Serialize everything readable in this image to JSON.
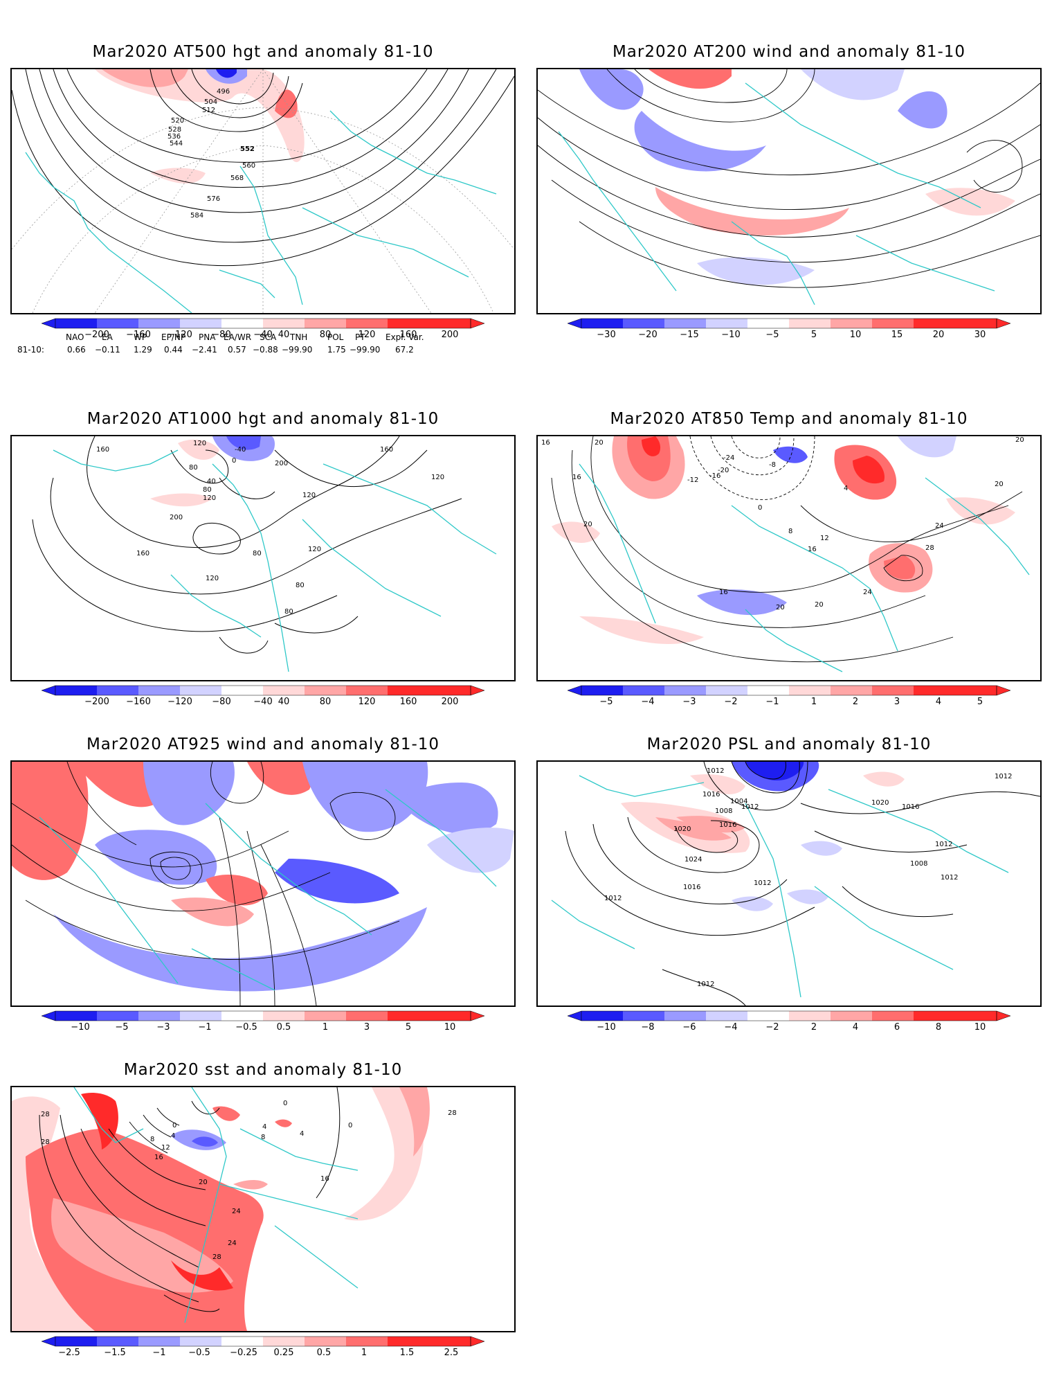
{
  "colors": {
    "blue_dark": "#1e1ef0",
    "blue_mid": "#5a5aff",
    "blue_light": "#9a9aff",
    "blue_pale": "#d2d2ff",
    "red_pale": "#ffd8d8",
    "red_light": "#ffa6a6",
    "red_mid": "#ff6e6e",
    "red_dark": "#ff2a2a",
    "coast": "#2ec8c8",
    "contour": "#000000"
  },
  "panels": [
    {
      "id": "at500",
      "title": "Mar2020 AT500 hgt and anomaly 81-10",
      "colorbar_ticks": [
        "−200",
        "−160",
        "−120",
        "−80",
        "−40",
        "40",
        "80",
        "120",
        "160",
        "200"
      ],
      "contour_labels": [
        "496",
        "504",
        "512",
        "520",
        "528",
        "536",
        "544",
        "552",
        "560",
        "568",
        "576",
        "584"
      ]
    },
    {
      "id": "at200",
      "title": "Mar2020 AT200 wind and anomaly 81-10",
      "colorbar_ticks": [
        "−30",
        "−20",
        "−15",
        "−10",
        "−5",
        "5",
        "10",
        "15",
        "20",
        "30"
      ],
      "contour_labels": []
    },
    {
      "id": "at1000",
      "title": "Mar2020 AT1000 hgt and anomaly 81-10",
      "colorbar_ticks": [
        "−200",
        "−160",
        "−120",
        "−80",
        "−40",
        "40",
        "80",
        "120",
        "160",
        "200"
      ],
      "contour_labels": [
        "160",
        "120",
        "80",
        "40",
        "-40",
        "0",
        "80",
        "120",
        "200",
        "160",
        "200",
        "120",
        "160",
        "120",
        "120",
        "80",
        "80",
        "80",
        "120"
      ]
    },
    {
      "id": "at850",
      "title": "Mar2020 AT850 Temp and anomaly 81-10",
      "colorbar_ticks": [
        "−5",
        "−4",
        "−3",
        "−2",
        "−1",
        "1",
        "2",
        "3",
        "4",
        "5"
      ],
      "contour_labels": [
        "16",
        "20",
        "16",
        "20",
        "-24",
        "-20",
        "-16",
        "-12",
        "-8",
        "0",
        "4",
        "8",
        "12",
        "16",
        "20",
        "24",
        "28",
        "24",
        "20",
        "16",
        "20",
        "20"
      ]
    },
    {
      "id": "at925",
      "title": "Mar2020 AT925 wind and anomaly 81-10",
      "colorbar_ticks": [
        "−10",
        "−5",
        "−3",
        "−1",
        "−0.5",
        "0.5",
        "1",
        "3",
        "5",
        "10"
      ],
      "contour_labels": []
    },
    {
      "id": "psl",
      "title": "Mar2020 PSL and anomaly 81-10",
      "colorbar_ticks": [
        "−10",
        "−8",
        "−6",
        "−4",
        "−2",
        "2",
        "4",
        "6",
        "8",
        "10"
      ],
      "contour_labels": [
        "1012",
        "1016",
        "1004",
        "1008",
        "1012",
        "1016",
        "1020",
        "1024",
        "1016",
        "1012",
        "1020",
        "1016",
        "1012",
        "1012",
        "1008",
        "1012",
        "1012",
        "1012"
      ]
    },
    {
      "id": "sst",
      "title": "Mar2020 sst and anomaly 81-10",
      "colorbar_ticks": [
        "−2.5",
        "−1.5",
        "−1",
        "−0.5",
        "−0.25",
        "0.25",
        "0.5",
        "1",
        "1.5",
        "2.5"
      ],
      "contour_labels": [
        "28",
        "28",
        "0",
        "4",
        "8",
        "12",
        "16",
        "20",
        "24",
        "28",
        "0",
        "4",
        "8",
        "4",
        "0",
        "16",
        "24",
        "28"
      ]
    }
  ],
  "teleconnections": {
    "row_label": "81-10:",
    "indices": [
      "NAO",
      "EA",
      "WP",
      "EP/NP",
      "PNA",
      "EA/WR",
      "SCA",
      "TNH",
      "POL",
      "PT",
      "Expl. Var."
    ],
    "values": [
      "0.66",
      "−0.11",
      "1.29",
      "0.44",
      "−2.41",
      "0.57",
      "−0.88",
      "−99.90",
      "1.75",
      "−99.90",
      "67.2"
    ]
  }
}
